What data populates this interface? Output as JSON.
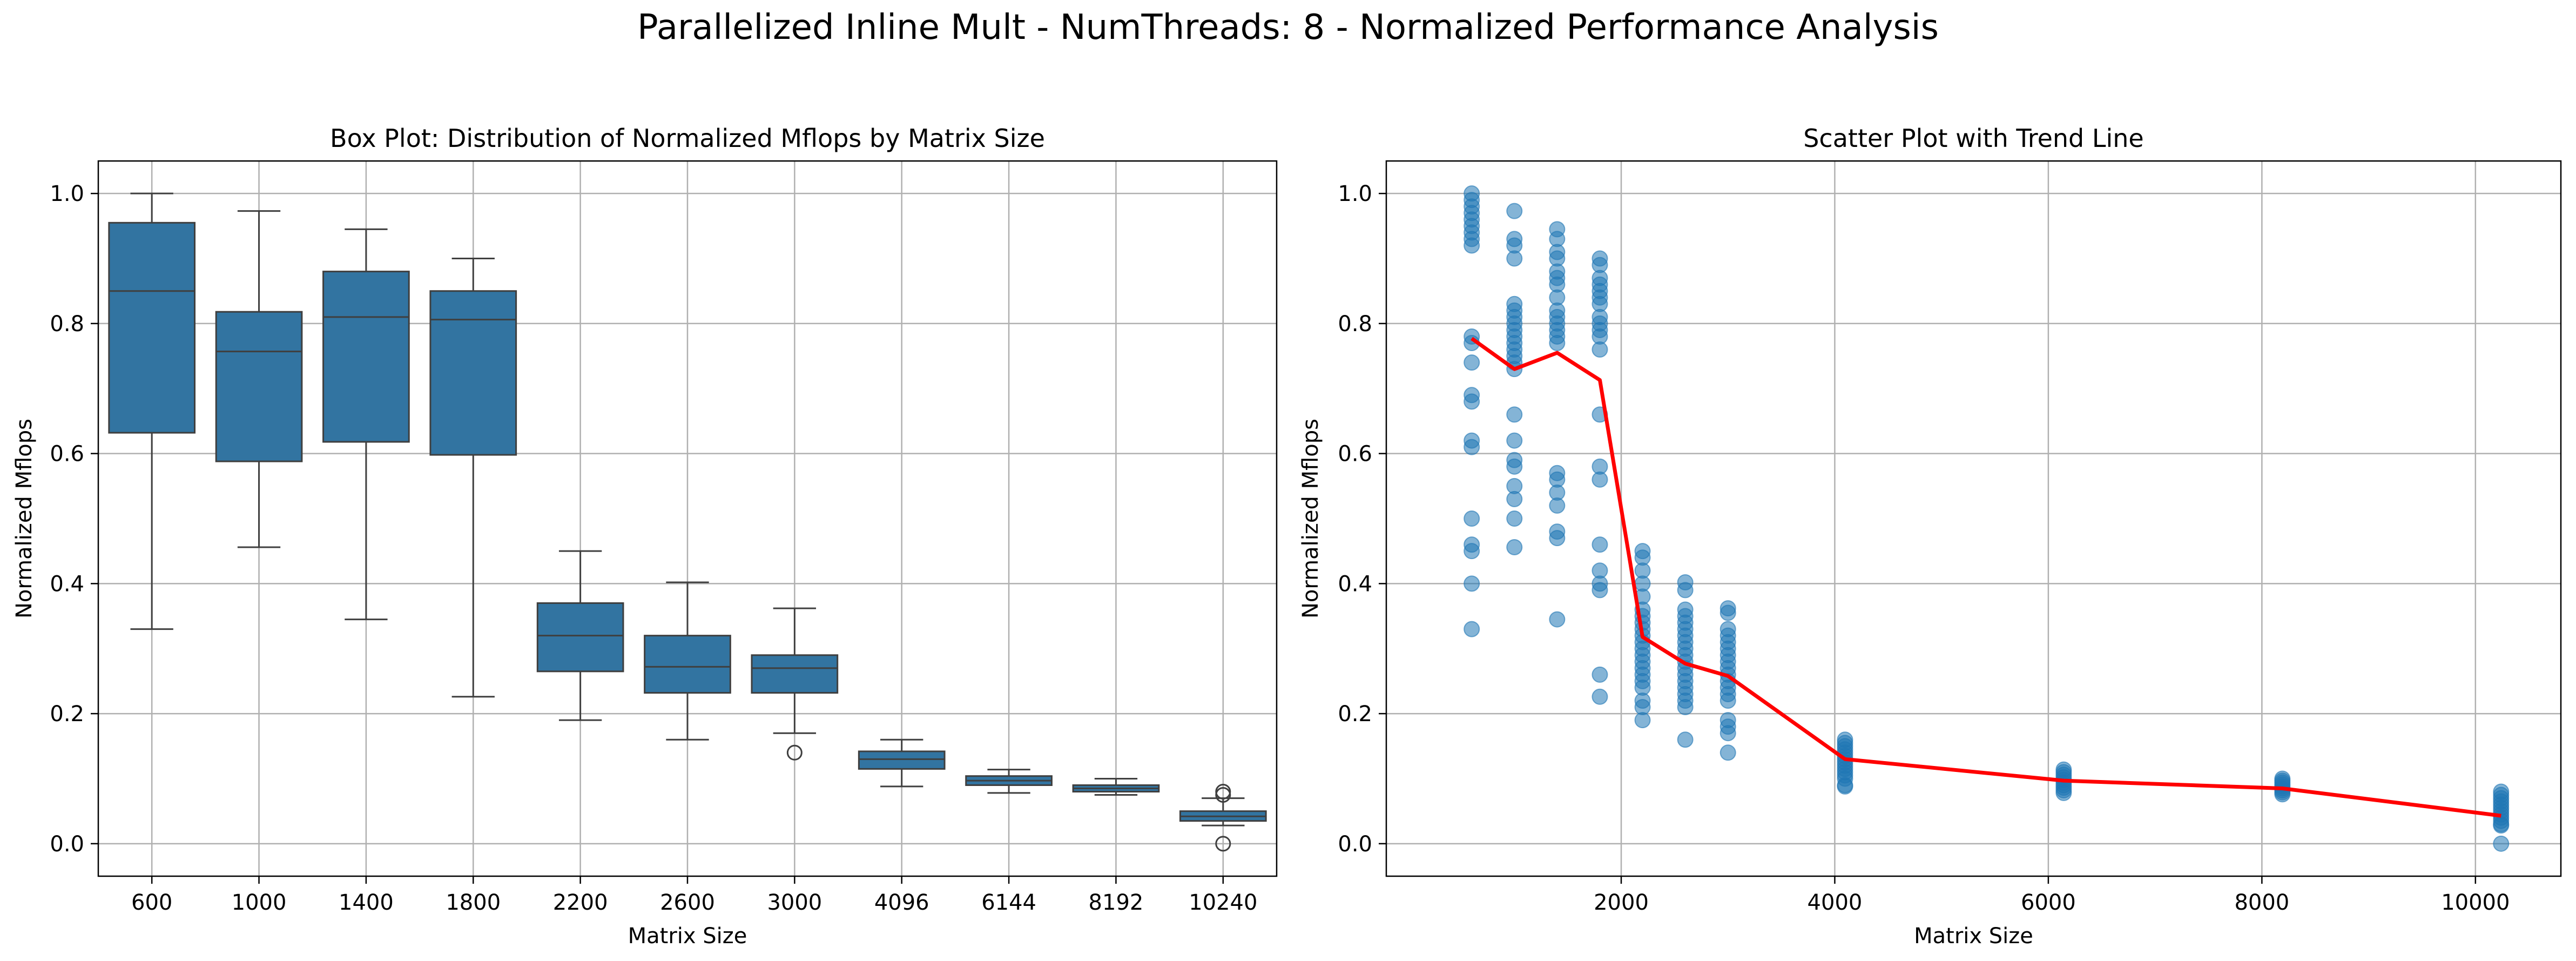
{
  "figure": {
    "suptitle": "Parallelized Inline Mult - NumThreads: 8 - Normalized Performance Analysis"
  },
  "chart_data": [
    {
      "type": "box",
      "title": "Box Plot: Distribution of Normalized Mflops by Matrix Size",
      "xlabel": "Matrix Size",
      "ylabel": "Normalized Mflops",
      "ylim": [
        -0.05,
        1.05
      ],
      "yticks": [
        "0.0",
        "0.2",
        "0.4",
        "0.6",
        "0.8",
        "1.0"
      ],
      "grid": true,
      "box_color": "#3274a1",
      "categories": [
        "600",
        "1000",
        "1400",
        "1800",
        "2200",
        "2600",
        "3000",
        "4096",
        "6144",
        "8192",
        "10240"
      ],
      "boxes": [
        {
          "whislo": 0.33,
          "q1": 0.632,
          "med": 0.85,
          "q3": 0.955,
          "whishi": 1.0,
          "fliers": []
        },
        {
          "whislo": 0.456,
          "q1": 0.588,
          "med": 0.757,
          "q3": 0.818,
          "whishi": 0.973,
          "fliers": []
        },
        {
          "whislo": 0.345,
          "q1": 0.618,
          "med": 0.81,
          "q3": 0.88,
          "whishi": 0.945,
          "fliers": []
        },
        {
          "whislo": 0.226,
          "q1": 0.598,
          "med": 0.806,
          "q3": 0.85,
          "whishi": 0.9,
          "fliers": []
        },
        {
          "whislo": 0.19,
          "q1": 0.265,
          "med": 0.32,
          "q3": 0.37,
          "whishi": 0.45,
          "fliers": []
        },
        {
          "whislo": 0.16,
          "q1": 0.232,
          "med": 0.272,
          "q3": 0.32,
          "whishi": 0.402,
          "fliers": []
        },
        {
          "whislo": 0.17,
          "q1": 0.232,
          "med": 0.27,
          "q3": 0.29,
          "whishi": 0.362,
          "fliers": [
            0.14
          ]
        },
        {
          "whislo": 0.088,
          "q1": 0.115,
          "med": 0.13,
          "q3": 0.142,
          "whishi": 0.16,
          "fliers": []
        },
        {
          "whislo": 0.078,
          "q1": 0.09,
          "med": 0.097,
          "q3": 0.104,
          "whishi": 0.114,
          "fliers": []
        },
        {
          "whislo": 0.075,
          "q1": 0.08,
          "med": 0.085,
          "q3": 0.09,
          "whishi": 0.1,
          "fliers": []
        },
        {
          "whislo": 0.028,
          "q1": 0.035,
          "med": 0.042,
          "q3": 0.05,
          "whishi": 0.07,
          "fliers": [
            0.0,
            0.075,
            0.08
          ]
        }
      ]
    },
    {
      "type": "scatter",
      "title": "Scatter Plot with Trend Line",
      "xlabel": "Matrix Size",
      "ylabel": "Normalized Mflops",
      "xlim": [
        -200,
        10800
      ],
      "ylim": [
        -0.05,
        1.05
      ],
      "xticks": [
        "2000",
        "4000",
        "6000",
        "8000",
        "10000"
      ],
      "yticks": [
        "0.0",
        "0.2",
        "0.4",
        "0.6",
        "0.8",
        "1.0"
      ],
      "grid": true,
      "point_color": "#1f77b4",
      "trend_color": "#ff0000",
      "series": [
        {
          "points": [
            [
              600,
              1.0
            ],
            [
              600,
              0.99
            ],
            [
              600,
              0.98
            ],
            [
              600,
              0.97
            ],
            [
              600,
              0.96
            ],
            [
              600,
              0.95
            ],
            [
              600,
              0.94
            ],
            [
              600,
              0.93
            ],
            [
              600,
              0.92
            ],
            [
              600,
              0.78
            ],
            [
              600,
              0.77
            ],
            [
              600,
              0.74
            ],
            [
              600,
              0.69
            ],
            [
              600,
              0.68
            ],
            [
              600,
              0.62
            ],
            [
              600,
              0.61
            ],
            [
              600,
              0.5
            ],
            [
              600,
              0.46
            ],
            [
              600,
              0.45
            ],
            [
              600,
              0.4
            ],
            [
              600,
              0.33
            ],
            [
              1000,
              0.973
            ],
            [
              1000,
              0.93
            ],
            [
              1000,
              0.92
            ],
            [
              1000,
              0.9
            ],
            [
              1000,
              0.83
            ],
            [
              1000,
              0.82
            ],
            [
              1000,
              0.81
            ],
            [
              1000,
              0.8
            ],
            [
              1000,
              0.79
            ],
            [
              1000,
              0.78
            ],
            [
              1000,
              0.77
            ],
            [
              1000,
              0.76
            ],
            [
              1000,
              0.75
            ],
            [
              1000,
              0.74
            ],
            [
              1000,
              0.73
            ],
            [
              1000,
              0.66
            ],
            [
              1000,
              0.62
            ],
            [
              1000,
              0.59
            ],
            [
              1000,
              0.58
            ],
            [
              1000,
              0.55
            ],
            [
              1000,
              0.53
            ],
            [
              1000,
              0.5
            ],
            [
              1000,
              0.456
            ],
            [
              1400,
              0.945
            ],
            [
              1400,
              0.93
            ],
            [
              1400,
              0.91
            ],
            [
              1400,
              0.9
            ],
            [
              1400,
              0.88
            ],
            [
              1400,
              0.87
            ],
            [
              1400,
              0.86
            ],
            [
              1400,
              0.84
            ],
            [
              1400,
              0.82
            ],
            [
              1400,
              0.81
            ],
            [
              1400,
              0.8
            ],
            [
              1400,
              0.79
            ],
            [
              1400,
              0.78
            ],
            [
              1400,
              0.77
            ],
            [
              1400,
              0.57
            ],
            [
              1400,
              0.56
            ],
            [
              1400,
              0.54
            ],
            [
              1400,
              0.52
            ],
            [
              1400,
              0.48
            ],
            [
              1400,
              0.47
            ],
            [
              1400,
              0.345
            ],
            [
              1800,
              0.9
            ],
            [
              1800,
              0.89
            ],
            [
              1800,
              0.87
            ],
            [
              1800,
              0.86
            ],
            [
              1800,
              0.85
            ],
            [
              1800,
              0.84
            ],
            [
              1800,
              0.83
            ],
            [
              1800,
              0.81
            ],
            [
              1800,
              0.8
            ],
            [
              1800,
              0.79
            ],
            [
              1800,
              0.78
            ],
            [
              1800,
              0.76
            ],
            [
              1800,
              0.66
            ],
            [
              1800,
              0.58
            ],
            [
              1800,
              0.56
            ],
            [
              1800,
              0.46
            ],
            [
              1800,
              0.42
            ],
            [
              1800,
              0.4
            ],
            [
              1800,
              0.39
            ],
            [
              1800,
              0.26
            ],
            [
              1800,
              0.226
            ],
            [
              2200,
              0.45
            ],
            [
              2200,
              0.44
            ],
            [
              2200,
              0.42
            ],
            [
              2200,
              0.4
            ],
            [
              2200,
              0.38
            ],
            [
              2200,
              0.36
            ],
            [
              2200,
              0.35
            ],
            [
              2200,
              0.34
            ],
            [
              2200,
              0.33
            ],
            [
              2200,
              0.32
            ],
            [
              2200,
              0.31
            ],
            [
              2200,
              0.3
            ],
            [
              2200,
              0.29
            ],
            [
              2200,
              0.28
            ],
            [
              2200,
              0.27
            ],
            [
              2200,
              0.26
            ],
            [
              2200,
              0.25
            ],
            [
              2200,
              0.24
            ],
            [
              2200,
              0.22
            ],
            [
              2200,
              0.21
            ],
            [
              2200,
              0.19
            ],
            [
              2600,
              0.402
            ],
            [
              2600,
              0.39
            ],
            [
              2600,
              0.36
            ],
            [
              2600,
              0.35
            ],
            [
              2600,
              0.34
            ],
            [
              2600,
              0.33
            ],
            [
              2600,
              0.32
            ],
            [
              2600,
              0.31
            ],
            [
              2600,
              0.3
            ],
            [
              2600,
              0.29
            ],
            [
              2600,
              0.28
            ],
            [
              2600,
              0.27
            ],
            [
              2600,
              0.26
            ],
            [
              2600,
              0.25
            ],
            [
              2600,
              0.24
            ],
            [
              2600,
              0.23
            ],
            [
              2600,
              0.22
            ],
            [
              2600,
              0.21
            ],
            [
              2600,
              0.16
            ],
            [
              3000,
              0.362
            ],
            [
              3000,
              0.355
            ],
            [
              3000,
              0.33
            ],
            [
              3000,
              0.32
            ],
            [
              3000,
              0.31
            ],
            [
              3000,
              0.3
            ],
            [
              3000,
              0.29
            ],
            [
              3000,
              0.28
            ],
            [
              3000,
              0.27
            ],
            [
              3000,
              0.26
            ],
            [
              3000,
              0.25
            ],
            [
              3000,
              0.24
            ],
            [
              3000,
              0.23
            ],
            [
              3000,
              0.22
            ],
            [
              3000,
              0.19
            ],
            [
              3000,
              0.18
            ],
            [
              3000,
              0.17
            ],
            [
              3000,
              0.14
            ],
            [
              4096,
              0.16
            ],
            [
              4096,
              0.155
            ],
            [
              4096,
              0.15
            ],
            [
              4096,
              0.145
            ],
            [
              4096,
              0.14
            ],
            [
              4096,
              0.135
            ],
            [
              4096,
              0.13
            ],
            [
              4096,
              0.125
            ],
            [
              4096,
              0.12
            ],
            [
              4096,
              0.115
            ],
            [
              4096,
              0.11
            ],
            [
              4096,
              0.105
            ],
            [
              4096,
              0.1
            ],
            [
              4096,
              0.09
            ],
            [
              4096,
              0.088
            ],
            [
              6144,
              0.114
            ],
            [
              6144,
              0.11
            ],
            [
              6144,
              0.106
            ],
            [
              6144,
              0.102
            ],
            [
              6144,
              0.098
            ],
            [
              6144,
              0.094
            ],
            [
              6144,
              0.09
            ],
            [
              6144,
              0.086
            ],
            [
              6144,
              0.082
            ],
            [
              6144,
              0.078
            ],
            [
              8192,
              0.1
            ],
            [
              8192,
              0.097
            ],
            [
              8192,
              0.094
            ],
            [
              8192,
              0.091
            ],
            [
              8192,
              0.088
            ],
            [
              8192,
              0.085
            ],
            [
              8192,
              0.082
            ],
            [
              8192,
              0.079
            ],
            [
              8192,
              0.076
            ],
            [
              10240,
              0.08
            ],
            [
              10240,
              0.075
            ],
            [
              10240,
              0.07
            ],
            [
              10240,
              0.065
            ],
            [
              10240,
              0.06
            ],
            [
              10240,
              0.055
            ],
            [
              10240,
              0.05
            ],
            [
              10240,
              0.045
            ],
            [
              10240,
              0.04
            ],
            [
              10240,
              0.035
            ],
            [
              10240,
              0.03
            ],
            [
              10240,
              0.028
            ],
            [
              10240,
              0.0
            ]
          ]
        },
        {
          "trend_x": [
            600,
            1000,
            1400,
            1800,
            2200,
            2600,
            3000,
            4096,
            6144,
            8192,
            10240
          ],
          "trend_y": [
            0.777,
            0.73,
            0.755,
            0.713,
            0.318,
            0.277,
            0.258,
            0.13,
            0.097,
            0.085,
            0.043
          ]
        }
      ]
    }
  ]
}
